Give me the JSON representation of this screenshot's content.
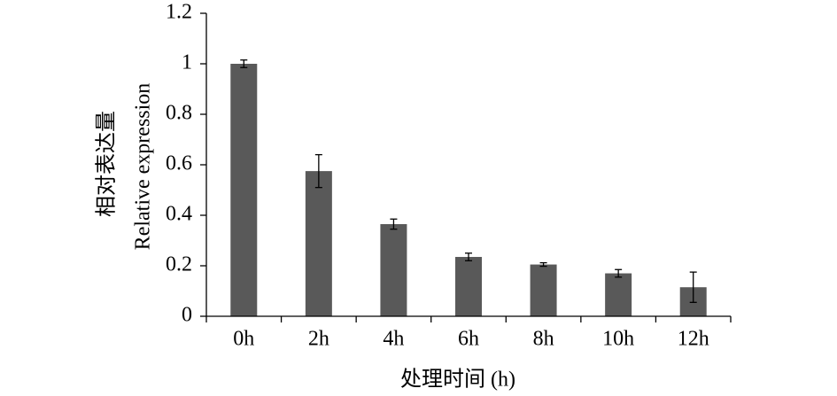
{
  "chart_data": {
    "type": "bar",
    "y_label": [
      "相对表达量",
      "Relative expression"
    ],
    "x_label": "处理时间 (h)",
    "categories": [
      "0h",
      "2h",
      "4h",
      "6h",
      "8h",
      "10h",
      "12h"
    ],
    "values": [
      1.0,
      0.575,
      0.365,
      0.235,
      0.205,
      0.17,
      0.115
    ],
    "errors": [
      0.015,
      0.065,
      0.02,
      0.015,
      0.007,
      0.015,
      0.06
    ],
    "color": "#595959",
    "ylim": [
      0,
      1.2
    ],
    "yticks": [
      0,
      0.2,
      0.4,
      0.6,
      0.8,
      1,
      1.2
    ],
    "grid": false
  }
}
